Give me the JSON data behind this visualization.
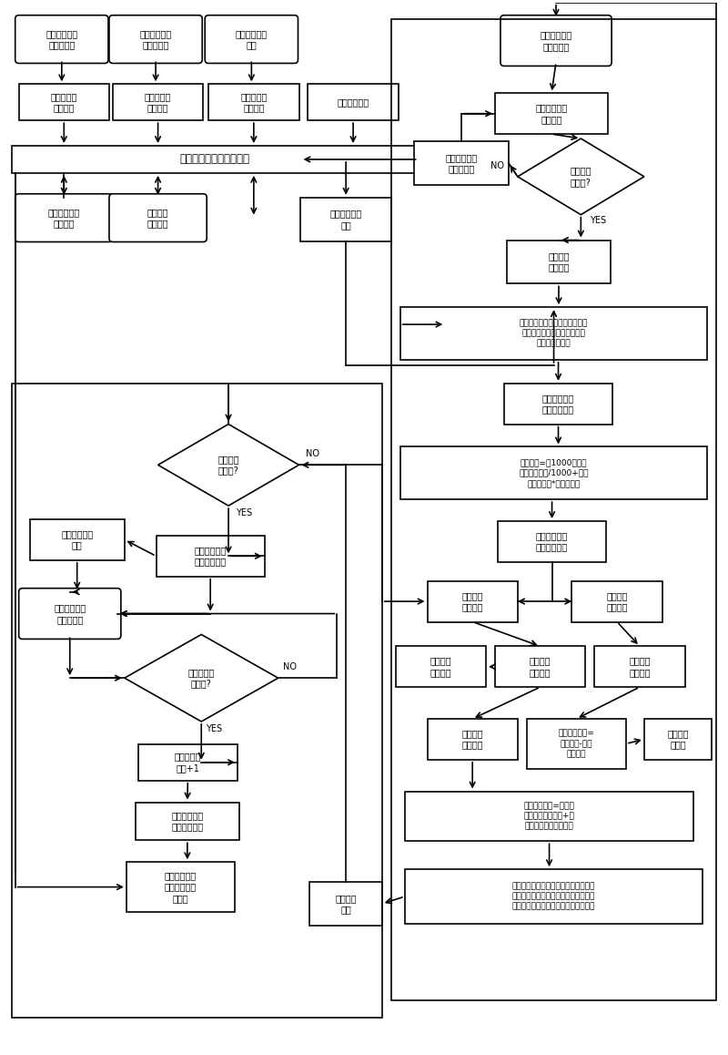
{
  "bg_color": "#ffffff",
  "line_color": "#000000",
  "box_fill": "#ffffff",
  "nodes": {
    "tl_box1": "铁水罐标准容\n积参数计算",
    "tl_box2": "耐材衬侵蚀参\n数测试计算",
    "tl_box3": "用户铁水需求\n信息",
    "tl_rect1": "计算结果置\n入数据库",
    "tl_rect2": "计算结果置\n入数据库",
    "tl_rect3": "用户信息置\n入数据库",
    "tl_rect4": "数据调用请求",
    "db_wide": "高炉铁水灌装系统数据库",
    "sub1": "其它高炉铁水\n灌装信息",
    "sub2": "其它信息\n需求用户",
    "sub3": "请求调用数据\n输出",
    "tr_start": "铁水罐车进入\n铁水灌装点",
    "tr_detect": "铁水罐车停止\n位置检测",
    "tr_alarm": "铁水罐车位置\n不到位警报",
    "tr_dia1": "在正确停\n车位置?",
    "tr_carid": "铁水罐车\n车号检测",
    "tr_dbq": "数据库调入高度容积数组、侵蚀\n率数组、该车号已用次数、用\n户需求量等参数",
    "tr_cw": "该已用次数的\n罐车皮重计算",
    "tr_tare": "罐车皮重=（1000次罐内\n耐材总使用量/1000+该车\n号已用次数*耐材比重）",
    "tr_unlock": "铁水灌装设备\n解锁灌装开始",
    "tr_det_level": "罐内熔液\n液面检测",
    "tr_det_speed": "罐车实时\n速率检测",
    "tr_calc_level": "罐内熔液\n液面计算",
    "tr_disp_level": "罐内熔液\n液面显示",
    "tr_calc_bot": "罐内熔液\n底层计算",
    "tr_calc_vol": "罐内熔液\n体积计算",
    "tr_rt_formula": "实时熔液重量=\n罐车重量-罐车\n计算皮重",
    "tr_disp_vol": "罐内熔液\n量显示",
    "tr_vol_formula": "罐内熔液体积=该液面\n高度罐内额定容积+该\n液面高度耐材侵蚀容积",
    "tr_final_formula": "用罐内实时熔液体积、实时熔液重量、\n铁熔液比重、渣熔液比重等参数，进行\n铁熔液重量、渣熔液重量、渣铁比计算",
    "tr_result": "计算结果\n显示",
    "bl_dia_reach": "到达用户\n需求量?",
    "bl_done": "铁水灌装设备\n闭锁灌装结束",
    "bl_alarm2": "铁水灌装结束\n警报",
    "bl_leave": "铁水罐车离开\n铁水灌装点",
    "bl_dia_leave": "罐车离开停\n车位置?",
    "bl_count": "该车号已用\n次数+1",
    "bl_save": "该车号已用次\n数存入数据库",
    "bl_sys": "系统控制需用\n其它参数存入\n数据库"
  }
}
